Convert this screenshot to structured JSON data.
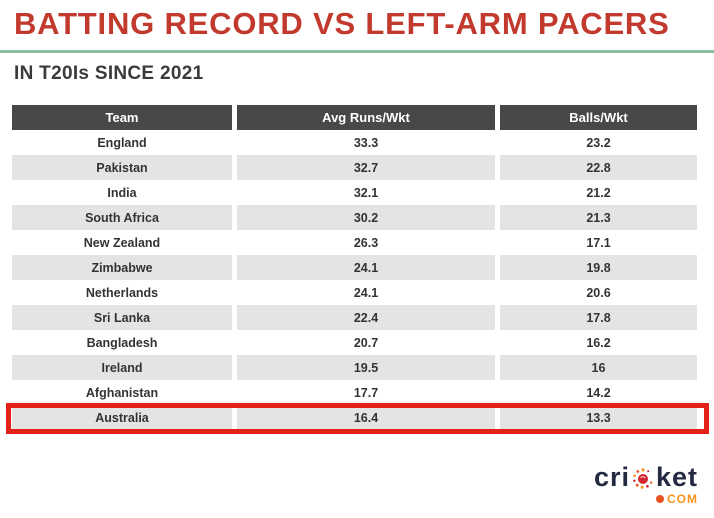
{
  "page": {
    "title": "BATTING RECORD VS LEFT-ARM PACERS",
    "subtitle": "IN T20Is SINCE 2021"
  },
  "colors": {
    "title_red": "#C23A2D",
    "divider_green": "#8CBCA4",
    "header_bg": "#484848",
    "row_alt_bg": "#E4E4E5",
    "highlight_border_red": "#E32119",
    "logo_navy": "#232A41",
    "logo_orange": "#F7941D",
    "logo_ball_red": "#D22730"
  },
  "table": {
    "columns": [
      "Team",
      "Avg Runs/Wkt",
      "Balls/Wkt"
    ],
    "rows": [
      {
        "team": "England",
        "avg": "33.3",
        "balls": "23.2"
      },
      {
        "team": "Pakistan",
        "avg": "32.7",
        "balls": "22.8"
      },
      {
        "team": "India",
        "avg": "32.1",
        "balls": "21.2"
      },
      {
        "team": "South Africa",
        "avg": "30.2",
        "balls": "21.3"
      },
      {
        "team": "New Zealand",
        "avg": "26.3",
        "balls": "17.1"
      },
      {
        "team": "Zimbabwe",
        "avg": "24.1",
        "balls": "19.8"
      },
      {
        "team": "Netherlands",
        "avg": "24.1",
        "balls": "20.6"
      },
      {
        "team": "Sri Lanka",
        "avg": "22.4",
        "balls": "17.8"
      },
      {
        "team": "Bangladesh",
        "avg": "20.7",
        "balls": "16.2"
      },
      {
        "team": "Ireland",
        "avg": "19.5",
        "balls": "16"
      },
      {
        "team": "Afghanistan",
        "avg": "17.7",
        "balls": "14.2"
      },
      {
        "team": "Australia",
        "avg": "16.4",
        "balls": "13.3"
      }
    ],
    "highlighted_team": "Australia"
  },
  "logo": {
    "text_pre": "cri",
    "text_post": "ket",
    "domain": "COM"
  },
  "chart_data": {
    "type": "table",
    "title": "BATTING RECORD VS LEFT-ARM PACERS",
    "subtitle": "IN T20Is SINCE 2021",
    "columns": [
      "Team",
      "Avg Runs/Wkt",
      "Balls/Wkt"
    ],
    "rows": [
      [
        "England",
        33.3,
        23.2
      ],
      [
        "Pakistan",
        32.7,
        22.8
      ],
      [
        "India",
        32.1,
        21.2
      ],
      [
        "South Africa",
        30.2,
        21.3
      ],
      [
        "New Zealand",
        26.3,
        17.1
      ],
      [
        "Zimbabwe",
        24.1,
        19.8
      ],
      [
        "Netherlands",
        24.1,
        20.6
      ],
      [
        "Sri Lanka",
        22.4,
        17.8
      ],
      [
        "Bangladesh",
        20.7,
        16.2
      ],
      [
        "Ireland",
        19.5,
        16
      ],
      [
        "Afghanistan",
        17.7,
        14.2
      ],
      [
        "Australia",
        16.4,
        13.3
      ]
    ],
    "highlighted_row": "Australia"
  }
}
